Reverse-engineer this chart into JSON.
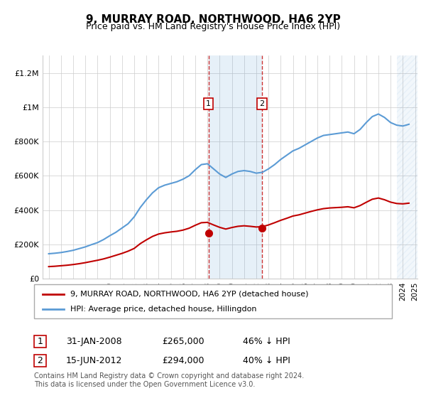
{
  "title": "9, MURRAY ROAD, NORTHWOOD, HA6 2YP",
  "subtitle": "Price paid vs. HM Land Registry's House Price Index (HPI)",
  "ylabel": "",
  "ylim": [
    0,
    1300000
  ],
  "yticks": [
    0,
    200000,
    400000,
    600000,
    800000,
    1000000,
    1200000
  ],
  "ytick_labels": [
    "£0",
    "£200K",
    "£400K",
    "£600K",
    "£800K",
    "£1M",
    "£1.2M"
  ],
  "hpi_color": "#5b9bd5",
  "price_color": "#c00000",
  "marker_color": "#c00000",
  "bg_color": "#ffffff",
  "grid_color": "#cccccc",
  "legend1": "9, MURRAY ROAD, NORTHWOOD, HA6 2YP (detached house)",
  "legend2": "HPI: Average price, detached house, Hillingdon",
  "sale1_date": 2008.08,
  "sale1_price": 265000,
  "sale1_label": "1",
  "sale2_date": 2012.46,
  "sale2_price": 294000,
  "sale2_label": "2",
  "footnote": "Contains HM Land Registry data © Crown copyright and database right 2024.\nThis data is licensed under the Open Government Licence v3.0.",
  "table1_date": "31-JAN-2008",
  "table1_price": "£265,000",
  "table1_hpi": "46% ↓ HPI",
  "table2_date": "15-JUN-2012",
  "table2_price": "£294,000",
  "table2_hpi": "40% ↓ HPI",
  "hpi_years": [
    1995,
    1995.5,
    1996,
    1996.5,
    1997,
    1997.5,
    1998,
    1998.5,
    1999,
    1999.5,
    2000,
    2000.5,
    2001,
    2001.5,
    2002,
    2002.5,
    2003,
    2003.5,
    2004,
    2004.5,
    2005,
    2005.5,
    2006,
    2006.5,
    2007,
    2007.5,
    2008,
    2008.5,
    2009,
    2009.5,
    2010,
    2010.5,
    2011,
    2011.5,
    2012,
    2012.5,
    2013,
    2013.5,
    2014,
    2014.5,
    2015,
    2015.5,
    2016,
    2016.5,
    2017,
    2017.5,
    2018,
    2018.5,
    2019,
    2019.5,
    2020,
    2020.5,
    2021,
    2021.5,
    2022,
    2022.5,
    2023,
    2023.5,
    2024,
    2024.5
  ],
  "hpi_values": [
    145000,
    148000,
    152000,
    158000,
    165000,
    175000,
    185000,
    198000,
    210000,
    228000,
    250000,
    270000,
    295000,
    320000,
    360000,
    415000,
    460000,
    500000,
    530000,
    545000,
    555000,
    565000,
    580000,
    600000,
    635000,
    665000,
    670000,
    640000,
    610000,
    590000,
    610000,
    625000,
    630000,
    625000,
    615000,
    620000,
    640000,
    665000,
    695000,
    720000,
    745000,
    760000,
    780000,
    800000,
    820000,
    835000,
    840000,
    845000,
    850000,
    855000,
    845000,
    870000,
    910000,
    945000,
    960000,
    940000,
    910000,
    895000,
    890000,
    900000
  ],
  "price_years": [
    1995,
    1995.5,
    1996,
    1996.5,
    1997,
    1997.5,
    1998,
    1998.5,
    1999,
    1999.5,
    2000,
    2000.5,
    2001,
    2001.5,
    2002,
    2002.5,
    2003,
    2003.5,
    2004,
    2004.5,
    2005,
    2005.5,
    2006,
    2006.5,
    2007,
    2007.5,
    2008,
    2008.5,
    2009,
    2009.5,
    2010,
    2010.5,
    2011,
    2011.5,
    2012,
    2012.5,
    2013,
    2013.5,
    2014,
    2014.5,
    2015,
    2015.5,
    2016,
    2016.5,
    2017,
    2017.5,
    2018,
    2018.5,
    2019,
    2019.5,
    2020,
    2020.5,
    2021,
    2021.5,
    2022,
    2022.5,
    2023,
    2023.5,
    2024,
    2024.5
  ],
  "price_values": [
    70000,
    72000,
    75000,
    78000,
    82000,
    87000,
    93000,
    100000,
    107000,
    115000,
    125000,
    136000,
    147000,
    160000,
    176000,
    204000,
    226000,
    246000,
    260000,
    267000,
    272000,
    276000,
    283000,
    294000,
    311000,
    326000,
    328000,
    313000,
    299000,
    289000,
    298000,
    305000,
    308000,
    305000,
    301000,
    303000,
    313000,
    326000,
    340000,
    352000,
    365000,
    372000,
    382000,
    392000,
    401000,
    408000,
    412000,
    414000,
    416000,
    419000,
    413000,
    426000,
    445000,
    463000,
    470000,
    460000,
    446000,
    438000,
    436000,
    440000
  ],
  "x_start": 1994.5,
  "x_end": 2025.2,
  "xtick_years": [
    1995,
    1996,
    1997,
    1998,
    1999,
    2000,
    2001,
    2002,
    2003,
    2004,
    2005,
    2006,
    2007,
    2008,
    2009,
    2010,
    2011,
    2012,
    2013,
    2014,
    2015,
    2016,
    2017,
    2018,
    2019,
    2020,
    2021,
    2022,
    2023,
    2024,
    2025
  ],
  "hatch_start": 2023.5,
  "hatch_end": 2025.2,
  "shade_start": 2008.08,
  "shade_end": 2012.46
}
